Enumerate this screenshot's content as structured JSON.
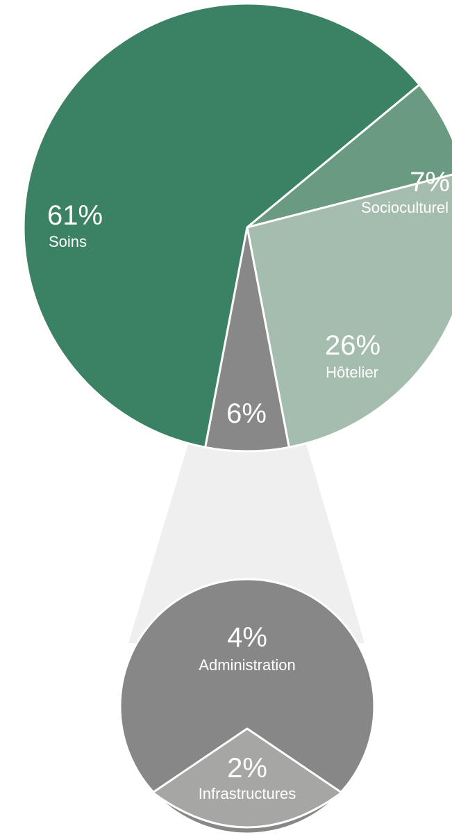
{
  "chart_data": {
    "type": "pie",
    "main_pie": {
      "slices": [
        {
          "label": "Soins",
          "percent_text": "61%",
          "value": 61,
          "color": "#3b8264"
        },
        {
          "label": "Socioculturel",
          "percent_text": "7%",
          "value": 7,
          "color": "#6a9b80"
        },
        {
          "label": "Hôtelier",
          "percent_text": "26%",
          "value": 26,
          "color": "#a5bdae"
        },
        {
          "label": "",
          "percent_text": "6%",
          "value": 6,
          "color": "#888888"
        }
      ]
    },
    "breakdown_pie": {
      "parent_percent_text": "6%",
      "slices": [
        {
          "label": "Administration",
          "percent_text": "4%",
          "value": 4,
          "color": "#878787"
        },
        {
          "label": "Infrastructures",
          "percent_text": "2%",
          "value": 2,
          "color": "#a6a6a5"
        }
      ]
    },
    "colors": {
      "connector": "#efefef",
      "separator": "#ffffff"
    }
  }
}
